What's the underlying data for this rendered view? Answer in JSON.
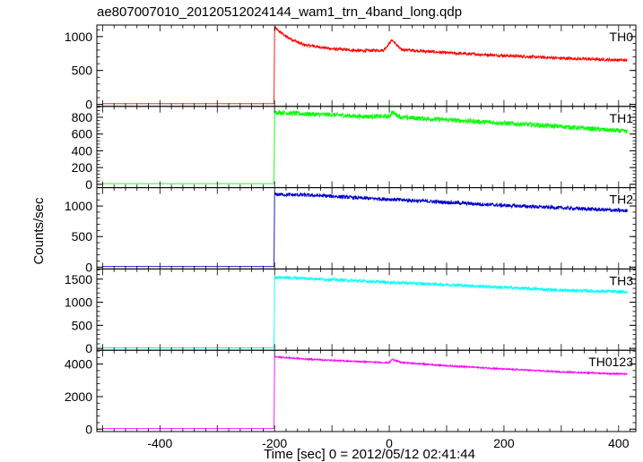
{
  "chart_data": {
    "type": "line",
    "title": "ae807007010_20120512024144_wam1_trn_4band_long.qdp",
    "xlabel": "Time [sec] 0 = 2012/05/12 02:41:44",
    "ylabel": "Counts/sec",
    "xlim": [
      -510,
      430
    ],
    "xticks": [
      -400,
      -200,
      0,
      200,
      400
    ],
    "grid": false,
    "shared_x": true,
    "panels": [
      {
        "name": "TH0",
        "color": "#ff0000",
        "ylim": [
          -30,
          1170
        ],
        "yticks": [
          0,
          500,
          1000
        ],
        "pre_level": 10,
        "peak": 1130,
        "points": [
          [
            -200,
            1130
          ],
          [
            -180,
            1000
          ],
          [
            -150,
            880
          ],
          [
            -100,
            820
          ],
          [
            -50,
            790
          ],
          [
            -10,
            800
          ],
          [
            5,
            950
          ],
          [
            20,
            810
          ],
          [
            100,
            760
          ],
          [
            200,
            720
          ],
          [
            300,
            680
          ],
          [
            415,
            650
          ]
        ],
        "noise": 22
      },
      {
        "name": "TH1",
        "color": "#00ff00",
        "ylim": [
          -40,
          930
        ],
        "yticks": [
          0,
          200,
          400,
          600,
          800
        ],
        "pre_level": 8,
        "peak": 870,
        "points": [
          [
            -200,
            860
          ],
          [
            -150,
            840
          ],
          [
            -100,
            830
          ],
          [
            -50,
            810
          ],
          [
            0,
            810
          ],
          [
            5,
            860
          ],
          [
            20,
            800
          ],
          [
            100,
            770
          ],
          [
            200,
            730
          ],
          [
            300,
            690
          ],
          [
            415,
            630
          ]
        ],
        "noise": 28
      },
      {
        "name": "TH2",
        "color": "#0000cc",
        "ylim": [
          -30,
          1300
        ],
        "yticks": [
          0,
          500,
          1000
        ],
        "pre_level": 10,
        "peak": 1210,
        "points": [
          [
            -200,
            1190
          ],
          [
            -150,
            1180
          ],
          [
            -100,
            1160
          ],
          [
            -50,
            1130
          ],
          [
            0,
            1110
          ],
          [
            100,
            1060
          ],
          [
            200,
            1010
          ],
          [
            300,
            970
          ],
          [
            415,
            920
          ]
        ],
        "noise": 30
      },
      {
        "name": "TH3",
        "color": "#00ffff",
        "ylim": [
          -40,
          1720
        ],
        "yticks": [
          0,
          500,
          1000,
          1500
        ],
        "pre_level": 12,
        "peak": 1580,
        "points": [
          [
            -200,
            1540
          ],
          [
            -150,
            1520
          ],
          [
            -100,
            1490
          ],
          [
            -50,
            1460
          ],
          [
            0,
            1430
          ],
          [
            100,
            1380
          ],
          [
            200,
            1320
          ],
          [
            300,
            1260
          ],
          [
            415,
            1220
          ]
        ],
        "noise": 35
      },
      {
        "name": "TH0123",
        "color": "#ff00ff",
        "ylim": [
          -150,
          4850
        ],
        "yticks": [
          0,
          2000,
          4000
        ],
        "pre_level": 30,
        "peak": 4500,
        "points": [
          [
            -200,
            4450
          ],
          [
            -150,
            4320
          ],
          [
            -100,
            4230
          ],
          [
            -50,
            4150
          ],
          [
            0,
            4080
          ],
          [
            5,
            4300
          ],
          [
            20,
            4100
          ],
          [
            100,
            3900
          ],
          [
            200,
            3700
          ],
          [
            300,
            3520
          ],
          [
            415,
            3380
          ]
        ],
        "noise": 45
      }
    ]
  }
}
